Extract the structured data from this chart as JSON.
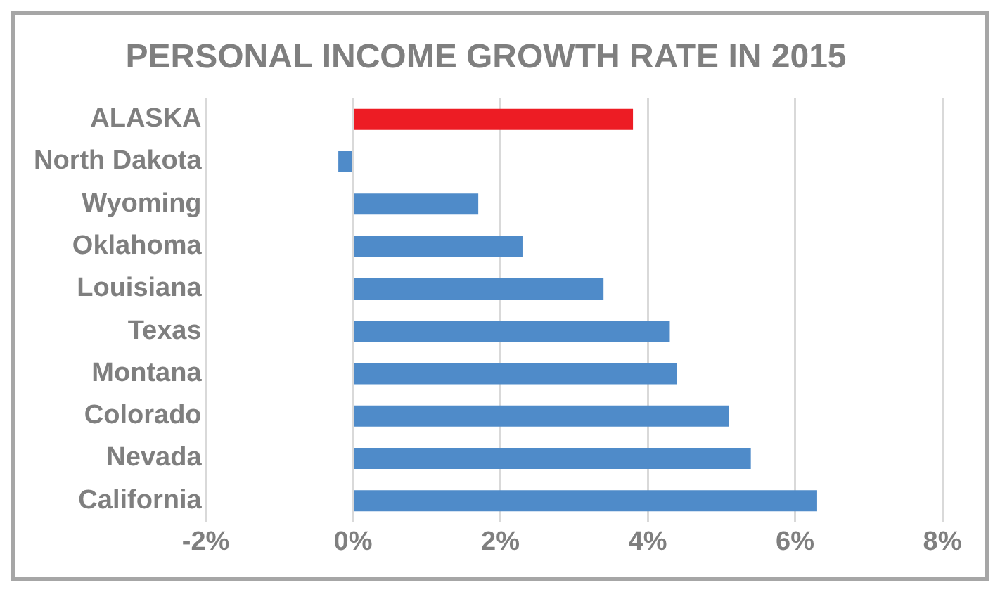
{
  "chart_data": {
    "type": "bar",
    "orientation": "horizontal",
    "title": "PERSONAL INCOME GROWTH RATE IN 2015",
    "categories": [
      "ALASKA",
      "North Dakota",
      "Wyoming",
      "Oklahoma",
      "Louisiana",
      "Texas",
      "Montana",
      "Colorado",
      "Nevada",
      "California"
    ],
    "values": [
      3.8,
      -0.2,
      1.7,
      2.3,
      3.4,
      4.3,
      4.4,
      5.1,
      5.4,
      6.3
    ],
    "colors": [
      "#ed1c24",
      "#4f8bc9",
      "#4f8bc9",
      "#4f8bc9",
      "#4f8bc9",
      "#4f8bc9",
      "#4f8bc9",
      "#4f8bc9",
      "#4f8bc9",
      "#4f8bc9"
    ],
    "xlim": [
      -2,
      8
    ],
    "xticks": [
      {
        "value": -2,
        "label": "-2%"
      },
      {
        "value": 0,
        "label": "0%"
      },
      {
        "value": 2,
        "label": "2%"
      },
      {
        "value": 4,
        "label": "4%"
      },
      {
        "value": 6,
        "label": "6%"
      },
      {
        "value": 8,
        "label": "8%"
      }
    ],
    "grid": "x",
    "legend": false
  }
}
